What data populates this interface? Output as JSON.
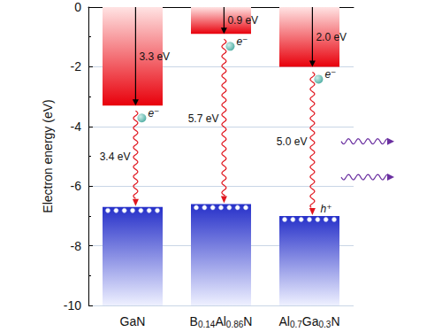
{
  "chart_data": {
    "type": "band_diagram",
    "y_label": "Electron energy (eV)",
    "categories": [
      "GaN",
      "B0.14Al0.86N",
      "Al0.7Ga0.3N"
    ],
    "conduction_band": {
      "values": [
        -3.3,
        -0.9,
        -2.0
      ],
      "color": "#e8000b"
    },
    "valence_band": {
      "values": [
        -6.7,
        -6.6,
        -7.0
      ],
      "color": "#2630c9"
    },
    "affinity_labels": [
      "3.3 eV",
      "0.9 eV",
      "2.0 eV"
    ],
    "gap_labels": [
      "3.4 eV",
      "5.7 eV",
      "5.0 eV"
    ],
    "electron_label": "e⁻",
    "hole_label": "h⁺",
    "ylim": [
      -10,
      0
    ],
    "yticks": [
      -10,
      -8,
      -6,
      -4,
      -2,
      0
    ],
    "grid": true
  }
}
